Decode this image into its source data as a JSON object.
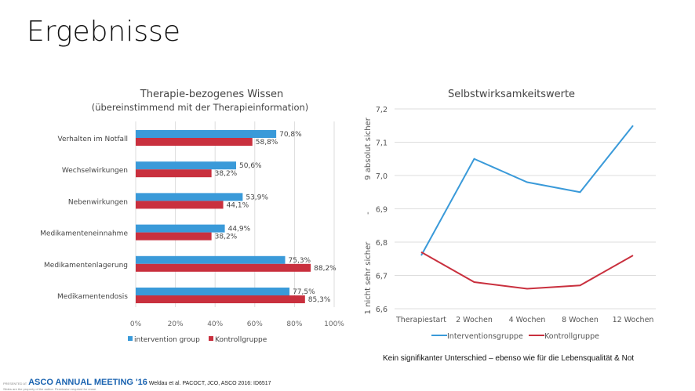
{
  "title": "Ergebnisse",
  "note": "Kein signifikanter Unterschied – ebenso wie für die Lebensqualität & Not",
  "footer": {
    "presented": "PRESENTED AT",
    "brand": "ASCO ANNUAL MEETING '16",
    "ref": "Weldau et al. PACOCT, JCO, ASCO 2016: ID6517",
    "small": "Slides are the property of the author. Permission required for reuse."
  },
  "colors": {
    "blue": "#3a9ad9",
    "red": "#c9303e"
  },
  "chart_data": [
    {
      "type": "bar",
      "title": "Therapie-bezogenes Wissen",
      "subtitle": "(übereinstimmend mit der Therapieinformation)",
      "categories": [
        "Verhalten im Notfall",
        "Wechselwirkungen",
        "Nebenwirkungen",
        "Medikamenteneinnahme",
        "Medikamentenlagerung",
        "Medikamentendosis"
      ],
      "series": [
        {
          "name": "intervention group",
          "values": [
            70.8,
            50.6,
            53.9,
            44.9,
            75.3,
            77.5
          ],
          "labels": [
            "70,8%",
            "50,6%",
            "53,9%",
            "44,9%",
            "75,3%",
            "77,5%"
          ]
        },
        {
          "name": "Kontrollgruppe",
          "values": [
            58.8,
            38.2,
            44.1,
            38.2,
            88.2,
            85.3
          ],
          "labels": [
            "58,8%",
            "38,2%",
            "44,1%",
            "38,2%",
            "88,2%",
            "85,3%"
          ]
        }
      ],
      "xlim": [
        0,
        100
      ],
      "ticks": [
        "0%",
        "20%",
        "40%",
        "60%",
        "80%",
        "100%"
      ],
      "legend": "bottom",
      "grid": true
    },
    {
      "type": "line",
      "title": "Selbstwirksamkeitswerte",
      "categories": [
        "Therapiestart",
        "2 Wochen",
        "4 Wochen",
        "8 Wochen",
        "12 Wochen"
      ],
      "series": [
        {
          "name": "Interventionsgruppe",
          "values": [
            6.76,
            7.05,
            6.98,
            6.95,
            7.15
          ]
        },
        {
          "name": "Kontrollgruppe",
          "values": [
            6.77,
            6.68,
            6.66,
            6.67,
            6.76
          ]
        }
      ],
      "ylim": [
        6.6,
        7.2
      ],
      "ticks": [
        "6,6",
        "6,7",
        "6,8",
        "6,9",
        "7,0",
        "7,1",
        "7,2"
      ],
      "ylabel_top": "9 absolut sicher",
      "ylabel_mid": "-",
      "ylabel_bottom": "1 nicht sehr sicher",
      "legend": "bottom",
      "grid": true
    }
  ]
}
